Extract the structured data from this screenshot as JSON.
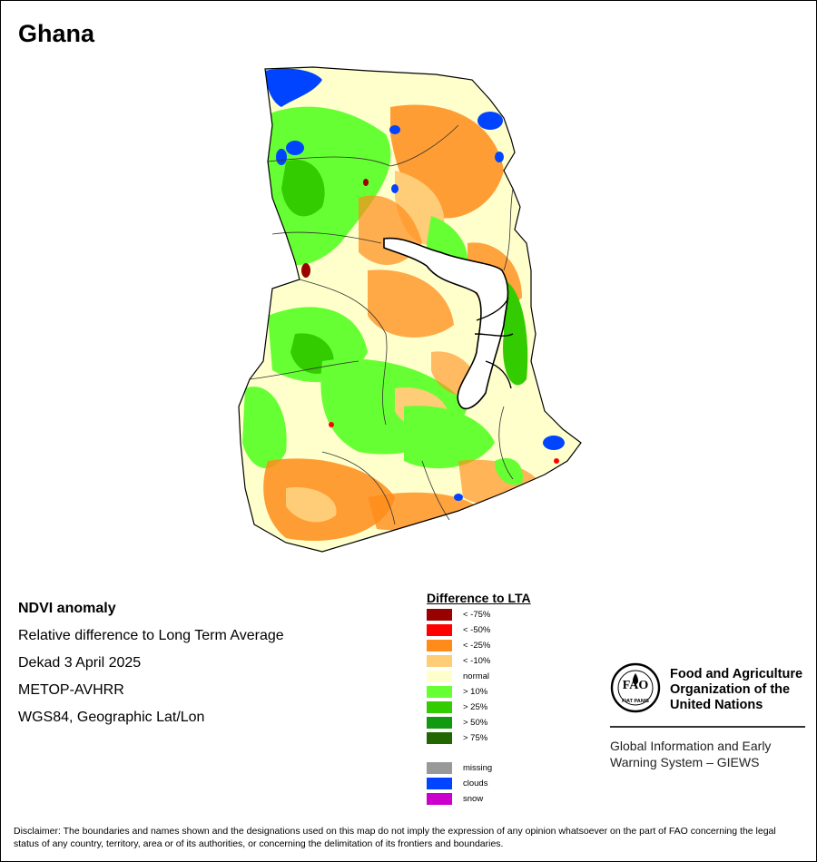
{
  "header": {
    "title": "Ghana"
  },
  "info": {
    "lines": [
      "NDVI anomaly",
      "Relative difference to Long Term Average",
      "Dekad 3 April 2025",
      "METOP-AVHRR",
      "WGS84, Geographic Lat/Lon"
    ]
  },
  "legend": {
    "title": "Difference to LTA",
    "items": [
      {
        "label": "< -75%",
        "color": "#990000"
      },
      {
        "label": "< -50%",
        "color": "#ff0000"
      },
      {
        "label": "< -25%",
        "color": "#ff8c1a"
      },
      {
        "label": "< -10%",
        "color": "#ffcc77"
      },
      {
        "label": "normal",
        "color": "#ffffcc"
      },
      {
        "label": "> 10%",
        "color": "#66ff33"
      },
      {
        "label": "> 25%",
        "color": "#33cc00"
      },
      {
        "label": "> 50%",
        "color": "#119911"
      },
      {
        "label": "> 75%",
        "color": "#226600"
      }
    ],
    "extra": [
      {
        "label": "missing",
        "color": "#999999"
      },
      {
        "label": "clouds",
        "color": "#0044ff"
      },
      {
        "label": "snow",
        "color": "#cc00cc"
      }
    ]
  },
  "org": {
    "name": "Food and Agriculture Organization of the United Nations",
    "logo_text": "FAO",
    "logo_motto": "FIAT PANIS",
    "system": "Global Information and Early Warning System – GIEWS"
  },
  "disclaimer": "Disclaimer: The boundaries and names shown and the designations used on this map do not imply the expression of any opinion whatsoever on the part of FAO concerning the legal status of any country, territory, area or of its authorities, or concerning the delimitation of its frontiers and boundaries."
}
